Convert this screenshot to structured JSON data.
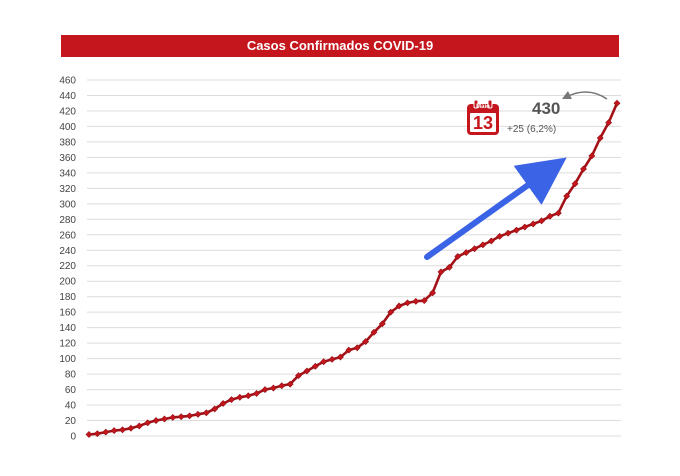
{
  "colors": {
    "title_bg": "#c4161c",
    "series": "#a31218",
    "marker": "#c4161c",
    "arrow": "#3b63e6",
    "annotation": "#555555"
  },
  "annotation": {
    "calendar_month": "Maio",
    "calendar_day": "13",
    "total": "430",
    "delta": "+25 (6,2%)",
    "calendar_icon": "calendar-icon",
    "curved_arrow_icon": "curved-arrow-icon",
    "trend_arrow_icon": "trend-arrow-icon"
  },
  "chart_data": {
    "type": "line",
    "title": "Casos Confirmados COVID-19",
    "xlabel": "",
    "ylabel": "",
    "ylim": [
      0,
      460
    ],
    "yticks": [
      "0",
      "20",
      "40",
      "60",
      "80",
      "100",
      "120",
      "140",
      "160",
      "180",
      "200",
      "220",
      "240",
      "260",
      "280",
      "300",
      "320",
      "340",
      "360",
      "380",
      "400",
      "420",
      "440",
      "460"
    ],
    "grid": true,
    "legend": "none",
    "series": [
      {
        "values": [
          2,
          3,
          5,
          7,
          8,
          10,
          13,
          17,
          20,
          22,
          24,
          25,
          26,
          28,
          30,
          35,
          42,
          47,
          50,
          52,
          55,
          60,
          62,
          65,
          67,
          78,
          84,
          90,
          96,
          99,
          102,
          111,
          114,
          122,
          134,
          145,
          160,
          168,
          172,
          174,
          175,
          185,
          212,
          218,
          232,
          237,
          242,
          247,
          252,
          258,
          262,
          266,
          270,
          274,
          278,
          284,
          288,
          310,
          326,
          345,
          362,
          385,
          405,
          430
        ]
      }
    ]
  }
}
